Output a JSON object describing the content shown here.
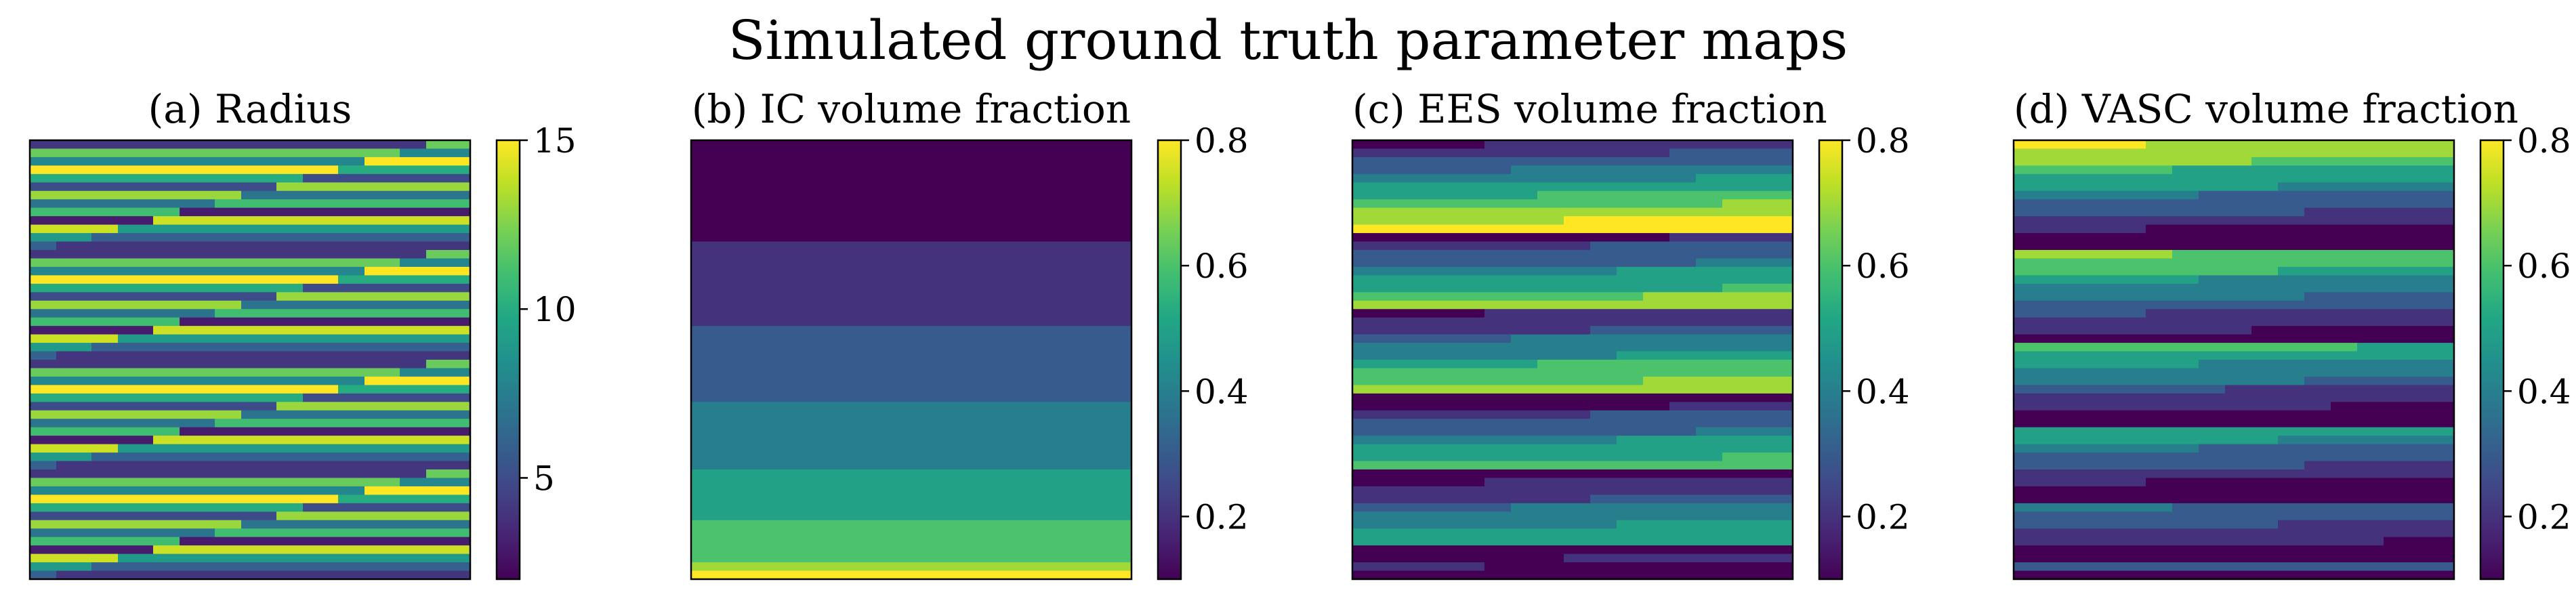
{
  "title": "Simulated ground truth parameter maps",
  "colormap": {
    "name": "viridis",
    "stops": [
      "#440154",
      "#482475",
      "#414487",
      "#355f8d",
      "#2a788e",
      "#21918c",
      "#22a884",
      "#44bf70",
      "#7ad151",
      "#bddf26",
      "#fde725"
    ]
  },
  "chart_data": [
    {
      "type": "heatmap",
      "title": "(a) Radius",
      "colorbar": {
        "min": 2,
        "max": 15,
        "ticks": [
          5,
          10,
          15
        ],
        "tick_labels": [
          "5",
          "10",
          "15"
        ]
      },
      "rows": 52,
      "cols": 50,
      "row_value_pattern": [
        4,
        12,
        8,
        15,
        10,
        5,
        13,
        7,
        11,
        3,
        14,
        9,
        6
      ],
      "row_step_cols": [
        45,
        42,
        38,
        35,
        31,
        28,
        24,
        21,
        17,
        14,
        10,
        7,
        3
      ],
      "description_cells": "alternating horizontal stripes, each row is a repeated radius value"
    },
    {
      "type": "heatmap",
      "title": "(b) IC volume fraction",
      "colorbar": {
        "min": 0.1,
        "max": 0.8,
        "ticks": [
          0.2,
          0.4,
          0.6,
          0.8
        ],
        "tick_labels": [
          "0.2",
          "0.4",
          "0.6",
          "0.8"
        ]
      },
      "rows": 52,
      "cols": 50,
      "bands": [
        {
          "value": 0.1,
          "row_start": 0,
          "row_end": 12
        },
        {
          "value": 0.2,
          "row_start": 12,
          "row_end": 22
        },
        {
          "value": 0.3,
          "row_start": 22,
          "row_end": 31
        },
        {
          "value": 0.4,
          "row_start": 31,
          "row_end": 39
        },
        {
          "value": 0.5,
          "row_start": 39,
          "row_end": 45
        },
        {
          "value": 0.6,
          "row_start": 45,
          "row_end": 50
        },
        {
          "value": 0.7,
          "row_start": 50,
          "row_end": 51
        },
        {
          "value": 0.8,
          "row_start": 51,
          "row_end": 52
        }
      ]
    },
    {
      "type": "heatmap",
      "title": "(c) EES volume fraction",
      "colorbar": {
        "min": 0.1,
        "max": 0.8,
        "ticks": [
          0.2,
          0.4,
          0.6,
          0.8
        ],
        "tick_labels": [
          "0.2",
          "0.4",
          "0.6",
          "0.8"
        ]
      },
      "rows": 52,
      "cols": 50,
      "row_values": [
        0.1,
        0.2,
        0.3,
        0.3,
        0.4,
        0.5,
        0.5,
        0.6,
        0.7,
        0.7,
        0.8,
        0.1,
        0.2,
        0.3,
        0.3,
        0.4,
        0.5,
        0.5,
        0.6,
        0.7,
        0.1,
        0.2,
        0.2,
        0.3,
        0.4,
        0.4,
        0.5,
        0.6,
        0.6,
        0.7,
        0.1,
        0.1,
        0.2,
        0.3,
        0.3,
        0.4,
        0.5,
        0.5,
        0.6,
        0.1,
        0.1,
        0.2,
        0.2,
        0.3,
        0.4,
        0.4,
        0.5,
        0.5,
        0.1,
        0.1,
        0.2,
        0.1
      ]
    },
    {
      "type": "heatmap",
      "title": "(d) VASC volume fraction",
      "colorbar": {
        "min": 0.1,
        "max": 0.8,
        "ticks": [
          0.2,
          0.4,
          0.6,
          0.8
        ],
        "tick_labels": [
          "0.2",
          "0.4",
          "0.6",
          "0.8"
        ]
      },
      "rows": 52,
      "cols": 50,
      "row_values": [
        0.8,
        0.7,
        0.7,
        0.6,
        0.5,
        0.5,
        0.4,
        0.3,
        0.3,
        0.2,
        0.2,
        0.1,
        0.1,
        0.7,
        0.6,
        0.6,
        0.5,
        0.4,
        0.4,
        0.3,
        0.3,
        0.2,
        0.2,
        0.1,
        0.6,
        0.5,
        0.5,
        0.4,
        0.4,
        0.3,
        0.2,
        0.2,
        0.1,
        0.1,
        0.5,
        0.5,
        0.4,
        0.3,
        0.3,
        0.2,
        0.2,
        0.1,
        0.1,
        0.4,
        0.3,
        0.3,
        0.2,
        0.2,
        0.1,
        0.1,
        0.3,
        0.1
      ]
    }
  ]
}
